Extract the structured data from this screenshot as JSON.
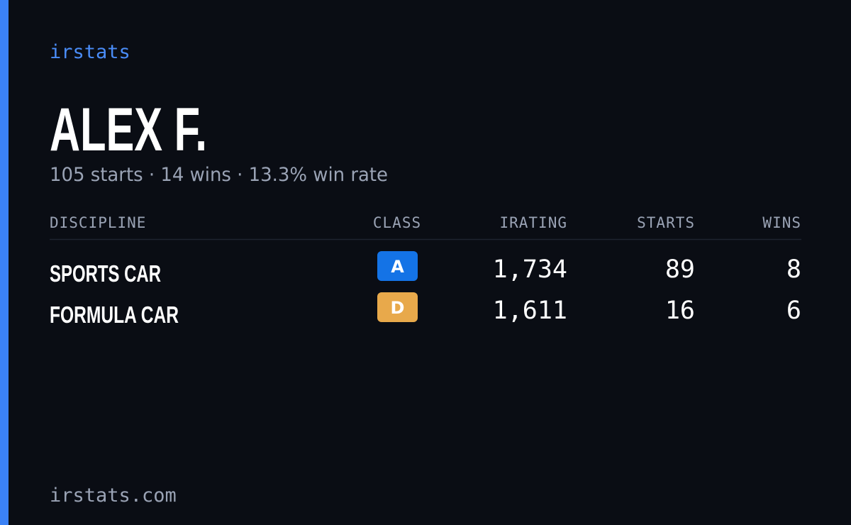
{
  "brand": "irstats",
  "profile": {
    "name": "ALEX F.",
    "summary": "105 starts · 14 wins · 13.3% win rate"
  },
  "table": {
    "headers": [
      "DISCIPLINE",
      "CLASS",
      "IRATING",
      "STARTS",
      "WINS"
    ],
    "rows": [
      [
        "SPORTS CAR",
        "A",
        "1,734",
        "89",
        "8"
      ],
      [
        "FORMULA CAR",
        "D",
        "1,611",
        "16",
        "6"
      ]
    ]
  },
  "footer": "irstats.com"
}
